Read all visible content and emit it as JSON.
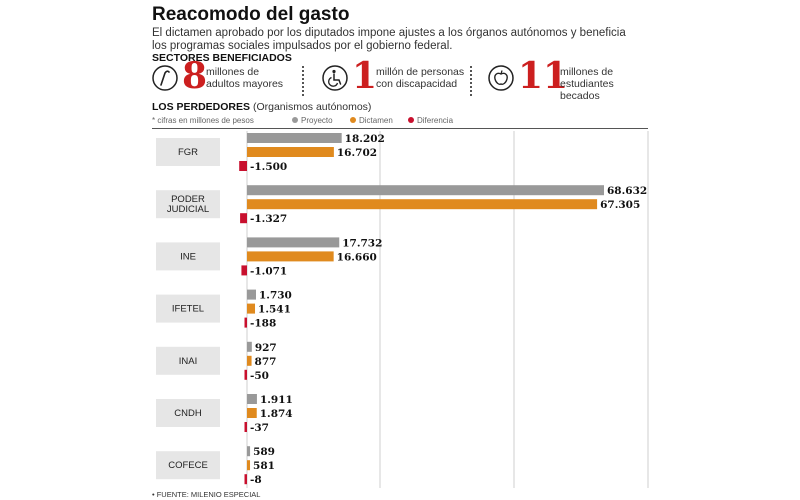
{
  "header": {
    "title": "Reacomodo del gasto",
    "subtitle": "El dictamen aprobado por los diputados impone ajustes a los órganos autónomos y beneficia los programas sociales impulsados por el gobierno federal."
  },
  "sectors": {
    "heading": "SECTORES BENEFICIADOS",
    "items": [
      {
        "number": "8",
        "text_line1": "millones de",
        "text_line2": "adultos mayores",
        "icon": "cane-icon"
      },
      {
        "number": "1",
        "text_line1": "millón de personas",
        "text_line2": "con discapacidad",
        "icon": "wheelchair-icon"
      },
      {
        "number": "11",
        "text_line1": "millones de estudiantes",
        "text_line2": "becados",
        "icon": "apple-icon"
      }
    ]
  },
  "losers": {
    "heading": "LOS PERDEDORES",
    "note": "(Organismos autónomos)"
  },
  "legend": {
    "units": "* cifras en millones de pesos",
    "items": [
      {
        "label": "Proyecto",
        "color": "#999999"
      },
      {
        "label": "Dictamen",
        "color": "#e08a1e"
      },
      {
        "label": "Diferencia",
        "color": "#c8102e"
      }
    ]
  },
  "colors": {
    "proyecto": "#999999",
    "dictamen": "#e08a1e",
    "diferencia": "#c8102e",
    "accent": "#cc1f1f"
  },
  "chart_data": {
    "type": "bar",
    "orientation": "horizontal",
    "categories": [
      "FGR",
      "PODER JUDICIAL",
      "INE",
      "IFETEL",
      "INAI",
      "CNDH",
      "COFECE"
    ],
    "category_display": [
      [
        "FGR"
      ],
      [
        "PODER",
        "JUDICIAL"
      ],
      [
        "INE"
      ],
      [
        "IFETEL"
      ],
      [
        "INAI"
      ],
      [
        "CNDH"
      ],
      [
        "COFECE"
      ]
    ],
    "series": [
      {
        "name": "Proyecto",
        "values": [
          18202,
          68632,
          17732,
          1730,
          927,
          1911,
          589
        ],
        "labels": [
          "18.202",
          "68.632",
          "17.732",
          "1.730",
          "927",
          "1.911",
          "589"
        ]
      },
      {
        "name": "Dictamen",
        "values": [
          16702,
          67305,
          16660,
          1541,
          877,
          1874,
          581
        ],
        "labels": [
          "16.702",
          "67.305",
          "16.660",
          "1.541",
          "877",
          "1.874",
          "581"
        ]
      },
      {
        "name": "Diferencia",
        "values": [
          -1500,
          -1327,
          -1071,
          -188,
          -50,
          -37,
          -8
        ],
        "labels": [
          "-1.500",
          "-1.327",
          "-1.071",
          "-188",
          "-50",
          "-37",
          "-8"
        ]
      }
    ],
    "xlim": [
      0,
      70000
    ],
    "grid": true,
    "legend": "top"
  },
  "source": "• FUENTE: MILENIO ESPECIAL"
}
